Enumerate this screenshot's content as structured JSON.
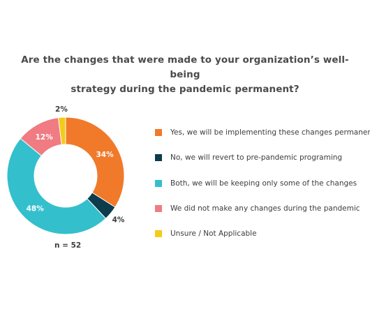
{
  "chart_data": {
    "type": "pie",
    "variant": "donut",
    "title": "Are the changes that were made to your organization’s well-being strategy during the pandemic permanent?",
    "title_lines": [
      "Are the changes that were made to your organization’s well-being",
      "strategy during the pandemic permanent?"
    ],
    "categories": [
      "Yes, we will be implementing these changes permanently",
      "No, we will revert to pre-pandemic programing",
      "Both, we will be keeping only some of the changes",
      "We did not make any changes during the pandemic",
      "Unsure / Not Applicable"
    ],
    "values": [
      34,
      4,
      48,
      12,
      2
    ],
    "value_labels": [
      "34%",
      "4%",
      "48%",
      "12%",
      "2%"
    ],
    "colors": [
      "#f07a2a",
      "#0d3c4c",
      "#34bfcc",
      "#f07b82",
      "#f5cb1a"
    ],
    "legend_placement": "right",
    "note": "n = 52"
  }
}
